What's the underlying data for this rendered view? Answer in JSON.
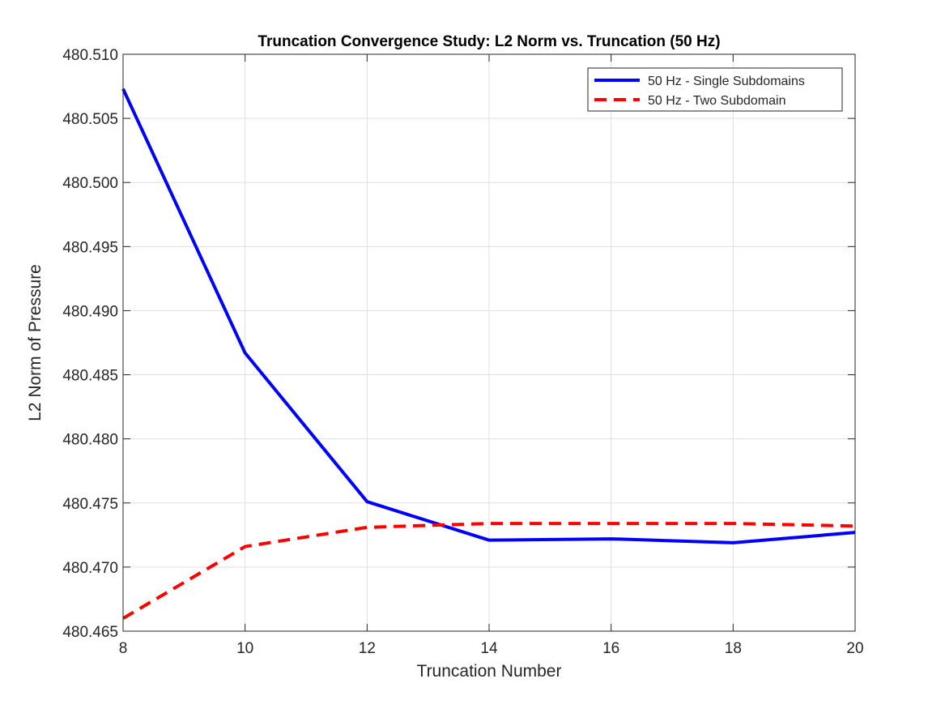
{
  "chart_data": {
    "type": "line",
    "title": "Truncation Convergence Study: L2 Norm vs. Truncation (50 Hz)",
    "xlabel": "Truncation Number",
    "ylabel": "L2 Norm of Pressure",
    "xlim": [
      8,
      20
    ],
    "ylim": [
      480.465,
      480.51
    ],
    "xticks": [
      8,
      10,
      12,
      14,
      16,
      18,
      20
    ],
    "yticks": [
      480.465,
      480.47,
      480.475,
      480.48,
      480.485,
      480.49,
      480.495,
      480.5,
      480.505,
      480.51
    ],
    "ytick_labels": [
      "480.465",
      "480.470",
      "480.475",
      "480.480",
      "480.485",
      "480.490",
      "480.495",
      "480.500",
      "480.505",
      "480.510"
    ],
    "grid": true,
    "legend_position": "top-right",
    "x": [
      8,
      10,
      12,
      14,
      16,
      18,
      20
    ],
    "series": [
      {
        "name": "50 Hz - Single Subdomains",
        "color": "#0000ff",
        "style": "solid",
        "values": [
          480.5073,
          480.4867,
          480.4751,
          480.4721,
          480.4722,
          480.4719,
          480.4727
        ]
      },
      {
        "name": "50 Hz - Two Subdomain",
        "color": "#ff0000",
        "style": "dashed",
        "values": [
          480.466,
          480.4716,
          480.4731,
          480.4734,
          480.4734,
          480.4734,
          480.4732
        ]
      }
    ]
  }
}
